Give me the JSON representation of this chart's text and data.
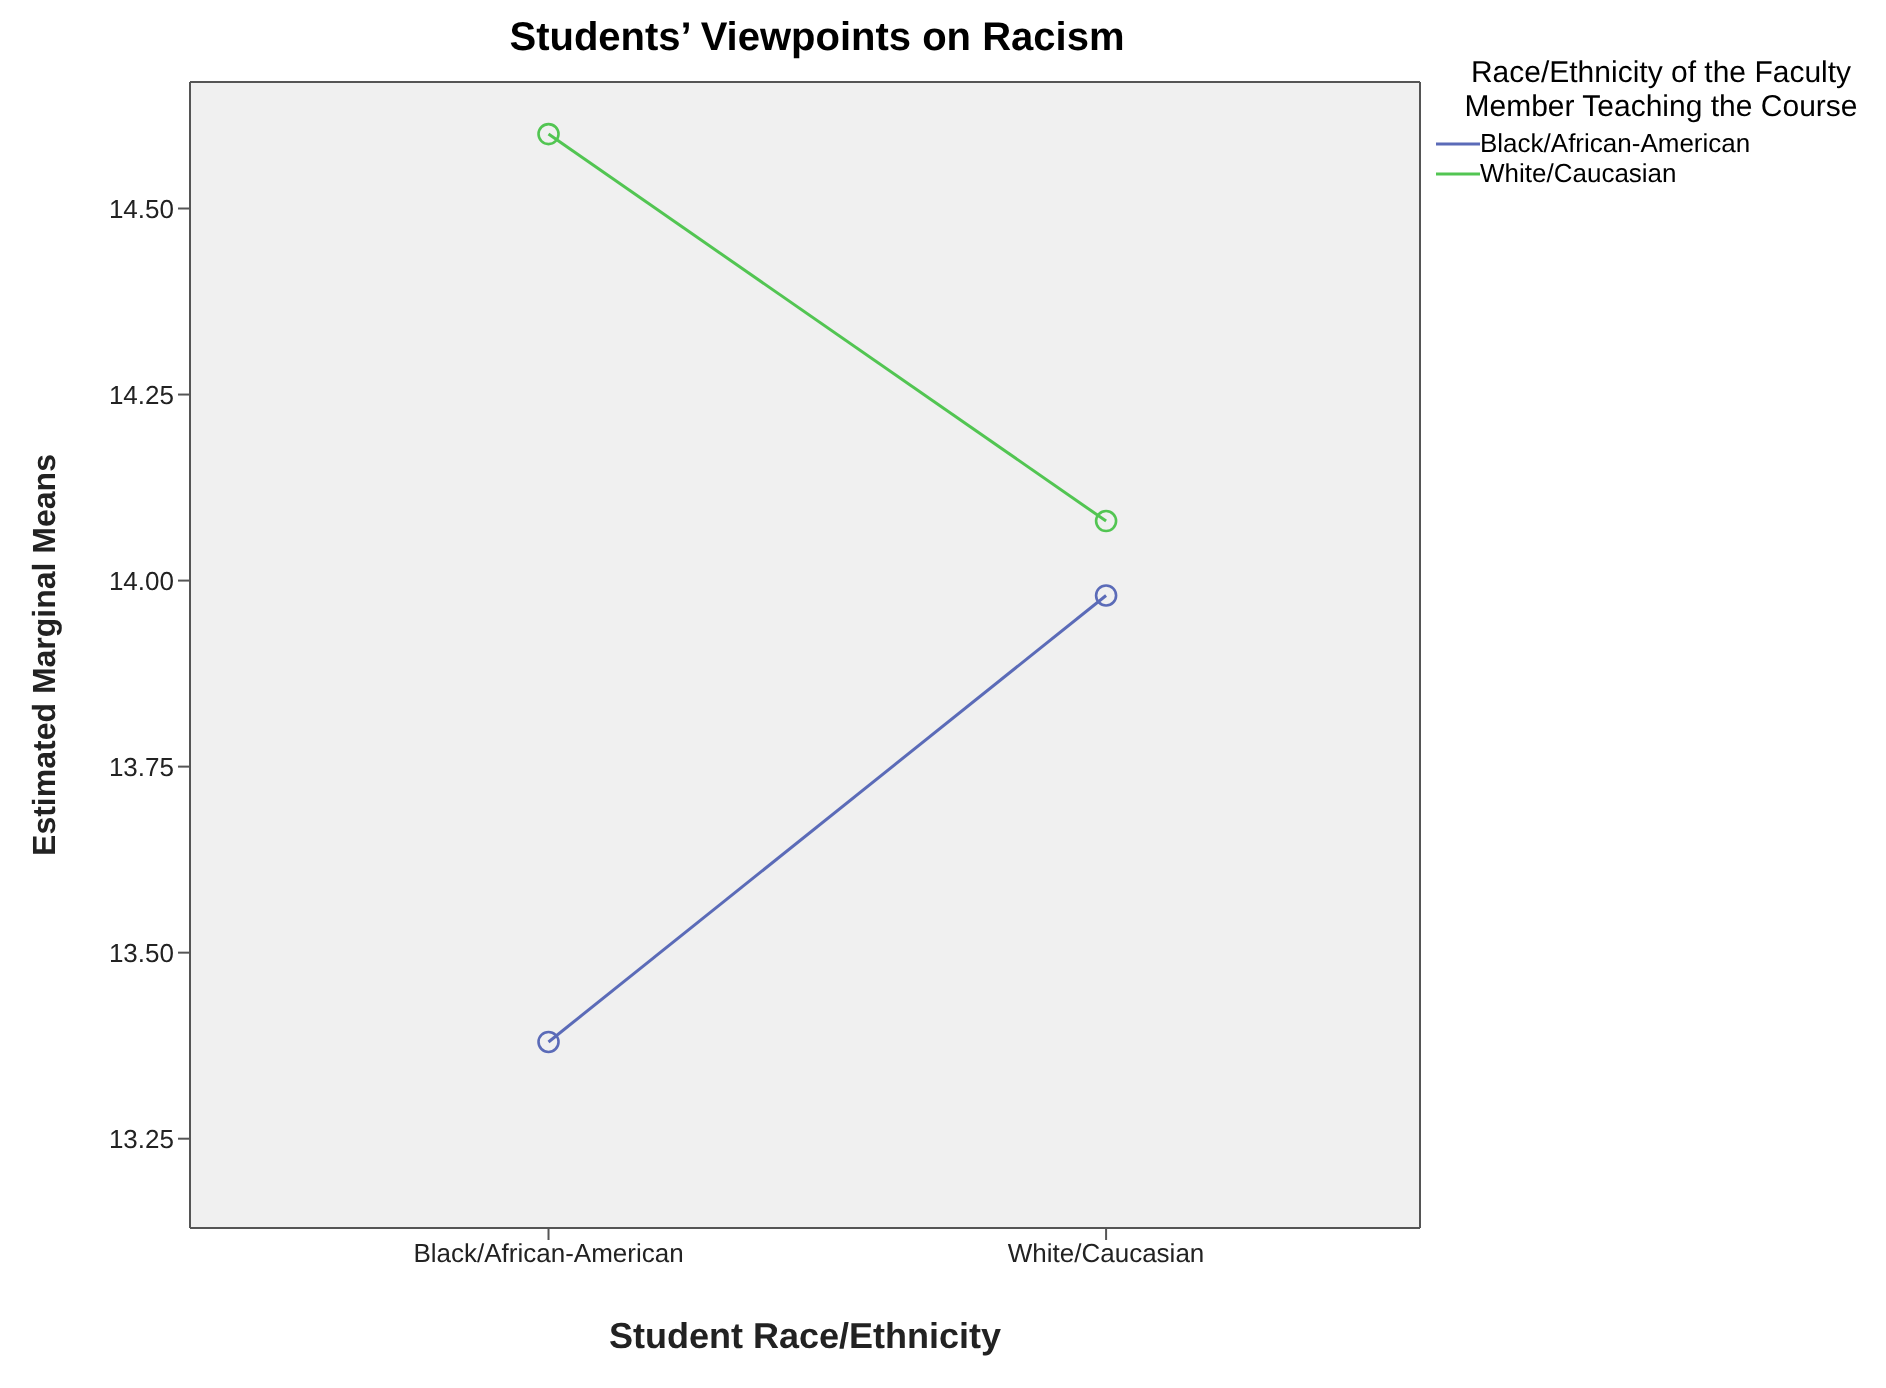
{
  "chart_data": {
    "type": "line",
    "title": "Students’ Viewpoints on Racism",
    "xlabel": "Student Race/Ethnicity",
    "ylabel": "Estimated Marginal Means",
    "legend_title": "Race/Ethnicity of the Faculty Member Teaching the Course",
    "categories": [
      "Black/African-American",
      "White/Caucasian"
    ],
    "series": [
      {
        "name": "Black/African-American",
        "color": "#5b6bb8",
        "values": [
          13.38,
          13.98
        ]
      },
      {
        "name": "White/Caucasian",
        "color": "#52c552",
        "values": [
          14.6,
          14.08
        ]
      }
    ],
    "ylim": [
      13.13,
      14.67
    ],
    "yticks": [
      {
        "value": 13.25,
        "label": "13.25"
      },
      {
        "value": 13.5,
        "label": "13.50"
      },
      {
        "value": 13.75,
        "label": "13.75"
      },
      {
        "value": 14,
        "label": "14.00"
      },
      {
        "value": 14.25,
        "label": "14.25"
      },
      {
        "value": 14.5,
        "label": "14.50"
      }
    ],
    "grid": false,
    "legend": "top right",
    "marker": "circle",
    "line_style": "solid"
  }
}
